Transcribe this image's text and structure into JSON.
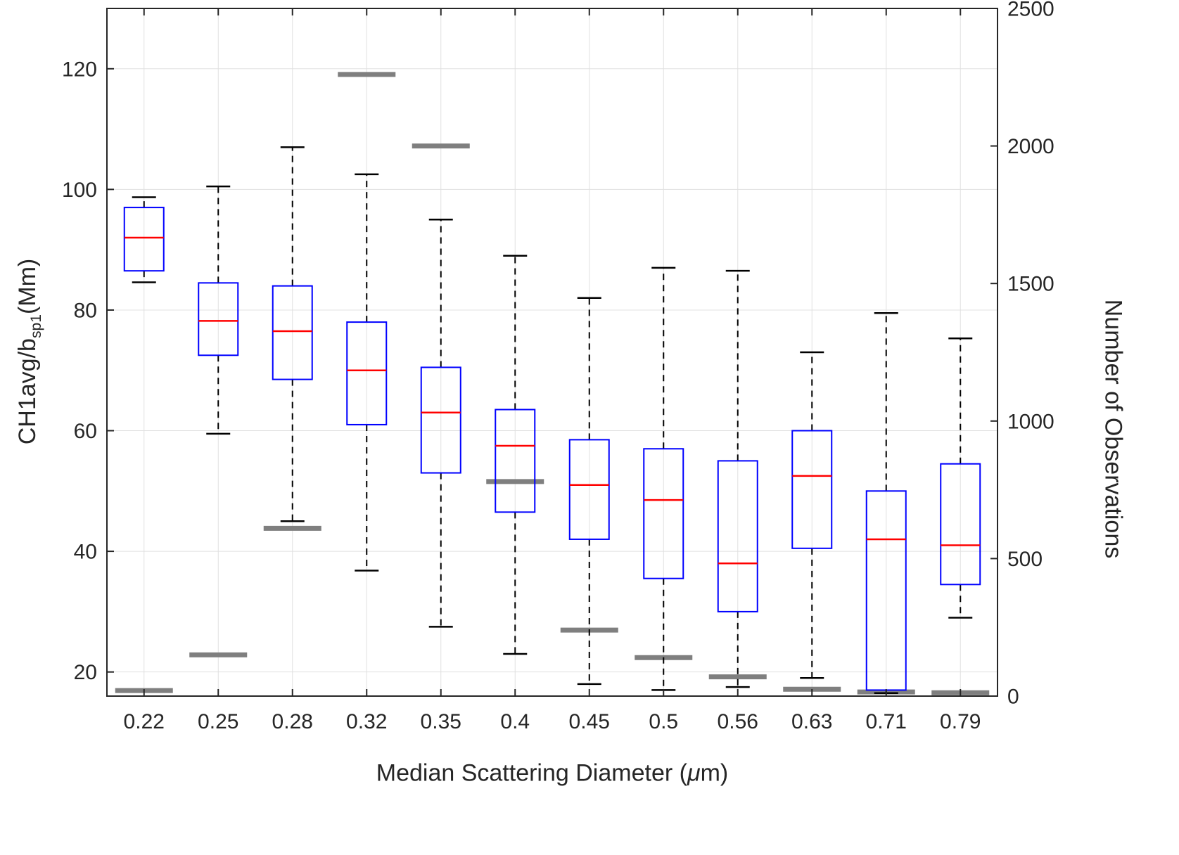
{
  "figure": {
    "background": "#ffffff"
  },
  "chart_data": {
    "type": "boxplot",
    "title": "",
    "xlabel": {
      "prefix": "Median Scattering Diameter (",
      "mu": "μ",
      "suffix": "m)"
    },
    "ylabel_left": {
      "main": "CH1avg/b",
      "sub": "sp1",
      "suffix": "(Mm)"
    },
    "ylabel_right": "Number of Observations",
    "categories": [
      "0.22",
      "0.25",
      "0.28",
      "0.32",
      "0.35",
      "0.4",
      "0.45",
      "0.5",
      "0.56",
      "0.63",
      "0.71",
      "0.79"
    ],
    "y_left": {
      "lim": [
        16,
        130
      ],
      "ticks": [
        20,
        40,
        60,
        80,
        100,
        120
      ]
    },
    "y_right": {
      "lim": [
        0,
        2500
      ],
      "ticks": [
        0,
        500,
        1000,
        1500,
        2000,
        2500
      ]
    },
    "grid": true,
    "legend": "none",
    "boxes": [
      {
        "whisker_low": 84.6,
        "q1": 86.5,
        "median": 92.0,
        "q3": 97.0,
        "whisker_high": 98.7
      },
      {
        "whisker_low": 59.5,
        "q1": 72.5,
        "median": 78.2,
        "q3": 84.5,
        "whisker_high": 100.5
      },
      {
        "whisker_low": 45.0,
        "q1": 68.5,
        "median": 76.5,
        "q3": 84.0,
        "whisker_high": 107.0
      },
      {
        "whisker_low": 36.8,
        "q1": 61.0,
        "median": 70.0,
        "q3": 78.0,
        "whisker_high": 102.5
      },
      {
        "whisker_low": 27.5,
        "q1": 53.0,
        "median": 63.0,
        "q3": 70.5,
        "whisker_high": 95.0
      },
      {
        "whisker_low": 23.0,
        "q1": 46.5,
        "median": 57.5,
        "q3": 63.5,
        "whisker_high": 89.0
      },
      {
        "whisker_low": 18.0,
        "q1": 42.0,
        "median": 51.0,
        "q3": 58.5,
        "whisker_high": 82.0
      },
      {
        "whisker_low": 17.0,
        "q1": 35.5,
        "median": 48.5,
        "q3": 57.0,
        "whisker_high": 87.0
      },
      {
        "whisker_low": 17.5,
        "q1": 30.0,
        "median": 38.0,
        "q3": 55.0,
        "whisker_high": 86.5
      },
      {
        "whisker_low": 19.0,
        "q1": 40.5,
        "median": 52.5,
        "q3": 60.0,
        "whisker_high": 73.0
      },
      {
        "whisker_low": 16.5,
        "q1": 17.0,
        "median": 42.0,
        "q3": 50.0,
        "whisker_high": 79.5
      },
      {
        "whisker_low": 29.0,
        "q1": 34.5,
        "median": 41.0,
        "q3": 54.5,
        "whisker_high": 75.3
      }
    ],
    "counts": [
      20,
      150,
      610,
      2260,
      2000,
      780,
      240,
      140,
      70,
      25,
      15,
      12
    ],
    "colors": {
      "box": "#0000ff",
      "median": "#ff0000",
      "whisker": "#000000",
      "count_bar": "#7f7f7f",
      "grid": "#e0e0e0",
      "axis": "#262626",
      "background": "#ffffff"
    }
  }
}
